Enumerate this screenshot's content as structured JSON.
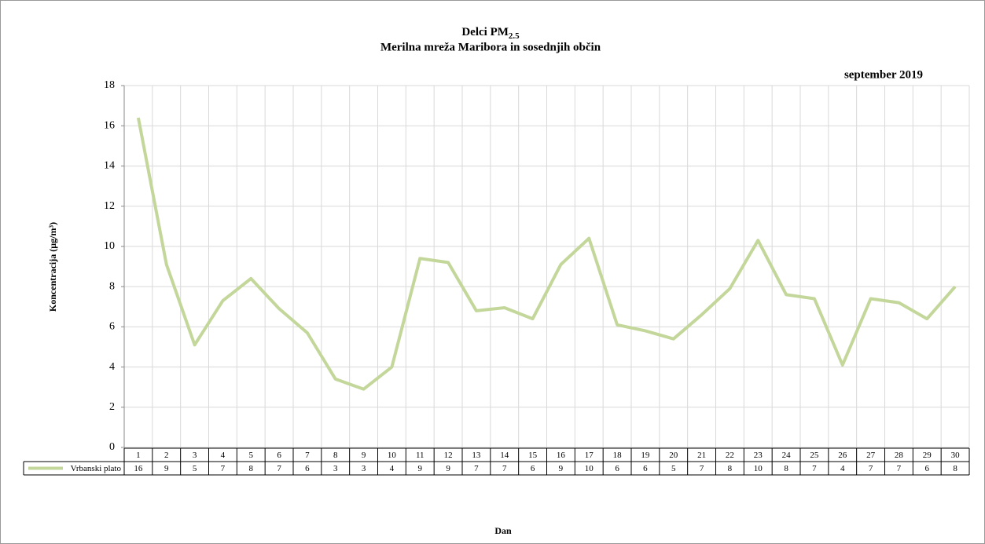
{
  "chart_data": {
    "type": "line",
    "title": "Delci PM",
    "title_subscript": "2.5",
    "subtitle": "Merilna  mreža Maribora  in sosednjih občin",
    "period": "september 2019",
    "y_label": "Koncentracija  (µg/m³)",
    "x_label": "Dan",
    "categories": [
      "1",
      "2",
      "3",
      "4",
      "5",
      "6",
      "7",
      "8",
      "9",
      "10",
      "11",
      "12",
      "13",
      "14",
      "15",
      "16",
      "17",
      "18",
      "19",
      "20",
      "21",
      "22",
      "23",
      "24",
      "25",
      "26",
      "27",
      "28",
      "29",
      "30"
    ],
    "series": [
      {
        "name": "Vrbanski plato",
        "color": "#c4d79b",
        "values": [
          16.4,
          9.1,
          5.1,
          7.3,
          8.4,
          6.9,
          5.7,
          3.4,
          2.9,
          4.0,
          9.4,
          9.2,
          6.8,
          6.95,
          6.4,
          9.1,
          10.4,
          6.1,
          5.8,
          5.4,
          6.6,
          7.9,
          10.3,
          7.6,
          7.4,
          4.1,
          7.4,
          7.2,
          6.4,
          8.0
        ],
        "value_labels": [
          "16",
          "9",
          "5",
          "7",
          "8",
          "7",
          "6",
          "3",
          "3",
          "4",
          "9",
          "9",
          "7",
          "7",
          "6",
          "9",
          "10",
          "6",
          "6",
          "5",
          "7",
          "8",
          "10",
          "8",
          "7",
          "4",
          "7",
          "7",
          "6",
          "8"
        ]
      }
    ],
    "ylim": [
      0,
      18
    ],
    "yticks": [
      0,
      2,
      4,
      6,
      8,
      10,
      12,
      14,
      16,
      18
    ],
    "grid": true
  }
}
